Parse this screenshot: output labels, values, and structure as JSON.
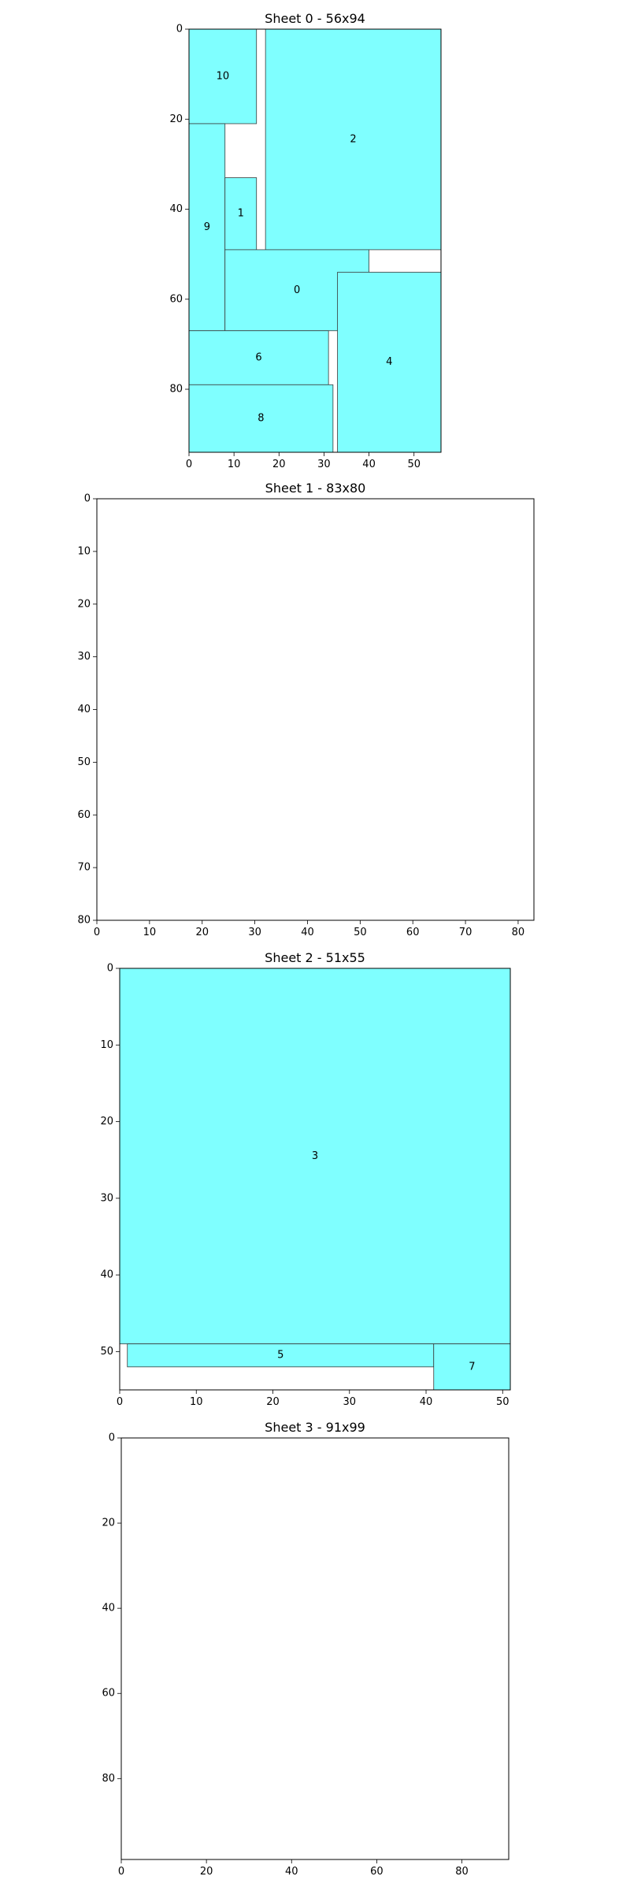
{
  "chart_data": [
    {
      "type": "bar",
      "title": "Sheet 0 - 56x94",
      "sheet_width": 56,
      "sheet_height": 94,
      "xlim": [
        0,
        56
      ],
      "ylim": [
        94,
        0
      ],
      "xticks": [
        0,
        10,
        20,
        30,
        40,
        50
      ],
      "yticks": [
        0,
        20,
        40,
        60,
        80
      ],
      "pieces": [
        {
          "label": "10",
          "x": 0,
          "y": 0,
          "w": 15,
          "h": 21
        },
        {
          "label": "2",
          "x": 17,
          "y": 0,
          "w": 39,
          "h": 49
        },
        {
          "label": "9",
          "x": 0,
          "y": 21,
          "w": 8,
          "h": 46
        },
        {
          "label": "1",
          "x": 8,
          "y": 33,
          "w": 7,
          "h": 16
        },
        {
          "label": "0",
          "x": 8,
          "y": 49,
          "w": 32,
          "h": 18
        },
        {
          "label": "4",
          "x": 33,
          "y": 54,
          "w": 23,
          "h": 40
        },
        {
          "label": "6",
          "x": 0,
          "y": 67,
          "w": 31,
          "h": 12
        },
        {
          "label": "8",
          "x": 0,
          "y": 79,
          "w": 32,
          "h": 15
        }
      ]
    },
    {
      "type": "bar",
      "title": "Sheet 1 - 83x80",
      "sheet_width": 83,
      "sheet_height": 80,
      "xlim": [
        0,
        83
      ],
      "ylim": [
        80,
        0
      ],
      "xticks": [
        0,
        10,
        20,
        30,
        40,
        50,
        60,
        70,
        80
      ],
      "yticks": [
        0,
        10,
        20,
        30,
        40,
        50,
        60,
        70,
        80
      ],
      "pieces": []
    },
    {
      "type": "bar",
      "title": "Sheet 2 - 51x55",
      "sheet_width": 51,
      "sheet_height": 55,
      "xlim": [
        0,
        51
      ],
      "ylim": [
        55,
        0
      ],
      "xticks": [
        0,
        10,
        20,
        30,
        40,
        50
      ],
      "yticks": [
        0,
        10,
        20,
        30,
        40,
        50
      ],
      "pieces": [
        {
          "label": "3",
          "x": 0,
          "y": 0,
          "w": 51,
          "h": 49
        },
        {
          "label": "5",
          "x": 1,
          "y": 49,
          "w": 40,
          "h": 3
        },
        {
          "label": "7",
          "x": 41,
          "y": 49,
          "w": 10,
          "h": 6
        }
      ]
    },
    {
      "type": "bar",
      "title": "Sheet 3 - 91x99",
      "sheet_width": 91,
      "sheet_height": 99,
      "xlim": [
        0,
        91
      ],
      "ylim": [
        99,
        0
      ],
      "xticks": [
        0,
        20,
        40,
        60,
        80
      ],
      "yticks": [
        0,
        20,
        40,
        60,
        80
      ],
      "pieces": []
    }
  ]
}
